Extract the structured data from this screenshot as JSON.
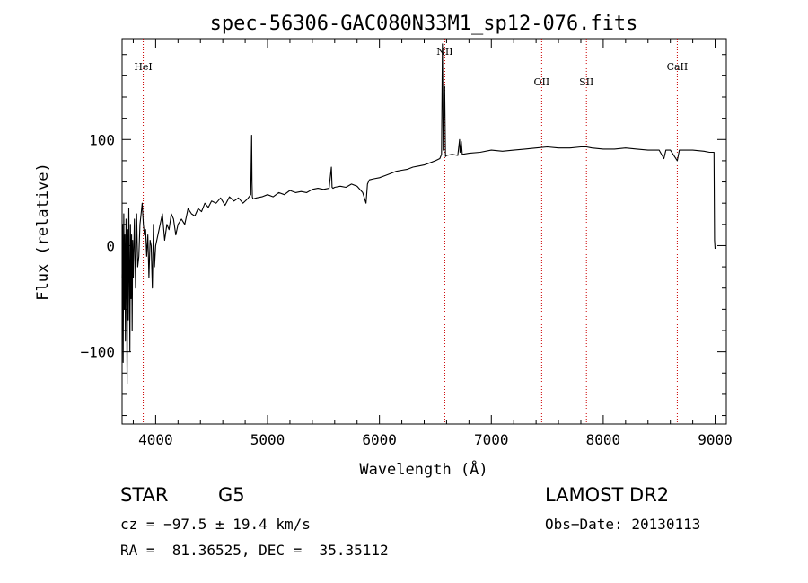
{
  "chart_data": {
    "type": "line",
    "title": "spec-56306-GAC080N33M1_sp12-076.fits",
    "xlabel": "Wavelength (Å)",
    "ylabel": "Flux (relative)",
    "xlim": [
      3700,
      9100
    ],
    "ylim": [
      -168,
      195
    ],
    "x_ticks": [
      4000,
      5000,
      6000,
      7000,
      8000,
      9000
    ],
    "x_tick_labels": [
      "4000",
      "5000",
      "6000",
      "7000",
      "8000",
      "9000"
    ],
    "y_ticks": [
      -100,
      0,
      100
    ],
    "y_tick_labels": [
      "−100",
      "0",
      "100"
    ],
    "grid": false,
    "series": [
      {
        "color": "#000000",
        "x": [
          3700,
          3705,
          3710,
          3715,
          3720,
          3725,
          3730,
          3735,
          3740,
          3745,
          3750,
          3755,
          3760,
          3765,
          3770,
          3775,
          3780,
          3785,
          3790,
          3795,
          3800,
          3810,
          3820,
          3830,
          3840,
          3850,
          3860,
          3870,
          3880,
          3890,
          3900,
          3910,
          3920,
          3930,
          3940,
          3950,
          3960,
          3970,
          3980,
          3990,
          4000,
          4020,
          4040,
          4060,
          4080,
          4100,
          4120,
          4140,
          4160,
          4180,
          4200,
          4230,
          4260,
          4290,
          4320,
          4350,
          4380,
          4410,
          4440,
          4470,
          4500,
          4540,
          4580,
          4620,
          4660,
          4700,
          4740,
          4780,
          4820,
          4850,
          4858,
          4861,
          4864,
          4870,
          4900,
          4950,
          5000,
          5050,
          5100,
          5150,
          5200,
          5250,
          5300,
          5350,
          5400,
          5450,
          5500,
          5550,
          5570,
          5577,
          5585,
          5600,
          5650,
          5700,
          5750,
          5800,
          5850,
          5880,
          5893,
          5910,
          5950,
          6000,
          6050,
          6100,
          6150,
          6200,
          6250,
          6300,
          6350,
          6400,
          6450,
          6500,
          6540,
          6555,
          6563,
          6570,
          6583,
          6590,
          6600,
          6650,
          6700,
          6716,
          6720,
          6731,
          6740,
          6800,
          6900,
          7000,
          7100,
          7200,
          7300,
          7400,
          7500,
          7600,
          7700,
          7800,
          7850,
          7900,
          8000,
          8100,
          8200,
          8300,
          8400,
          8500,
          8542,
          8560,
          8600,
          8662,
          8680,
          8700,
          8800,
          8900,
          8950,
          8990,
          8995,
          9000
        ],
        "y": [
          -30,
          20,
          -110,
          30,
          -60,
          10,
          -90,
          25,
          -40,
          -130,
          15,
          -70,
          35,
          -20,
          -100,
          20,
          -50,
          10,
          -80,
          5,
          -30,
          25,
          -40,
          30,
          -20,
          -10,
          20,
          30,
          40,
          20,
          10,
          15,
          -10,
          10,
          -30,
          5,
          0,
          -40,
          20,
          -20,
          0,
          10,
          20,
          30,
          5,
          20,
          15,
          30,
          25,
          10,
          20,
          25,
          20,
          35,
          30,
          28,
          35,
          32,
          40,
          36,
          42,
          40,
          45,
          38,
          46,
          42,
          45,
          40,
          44,
          48,
          104,
          60,
          46,
          44,
          45,
          46,
          48,
          46,
          50,
          48,
          52,
          50,
          51,
          50,
          53,
          54,
          53,
          54,
          74,
          55,
          54,
          55,
          56,
          55,
          58,
          56,
          50,
          40,
          58,
          62,
          63,
          64,
          66,
          68,
          70,
          71,
          72,
          74,
          75,
          76,
          78,
          80,
          82,
          86,
          190,
          90,
          150,
          84,
          85,
          86,
          85,
          100,
          88,
          98,
          86,
          87,
          88,
          90,
          89,
          90,
          91,
          92,
          93,
          92,
          92,
          93,
          93,
          92,
          91,
          91,
          92,
          91,
          90,
          90,
          82,
          90,
          90,
          80,
          90,
          90,
          90,
          89,
          88,
          88,
          5,
          -3
        ]
      }
    ],
    "line_markers": [
      {
        "label": "HeI",
        "x": 3889
      },
      {
        "label": "NII",
        "x": 6584
      },
      {
        "label": "OII",
        "x": 7450
      },
      {
        "label": "SII",
        "x": 7850
      },
      {
        "label": "CaII",
        "x": 8662
      }
    ]
  },
  "info": {
    "object_class": "STAR",
    "subclass": "G5",
    "survey": "LAMOST DR2",
    "cz": "cz = −97.5 ± 19.4 km/s",
    "obs_date": "Obs−Date: 20130113",
    "coords": "RA =  81.36525, DEC =  35.35112"
  }
}
